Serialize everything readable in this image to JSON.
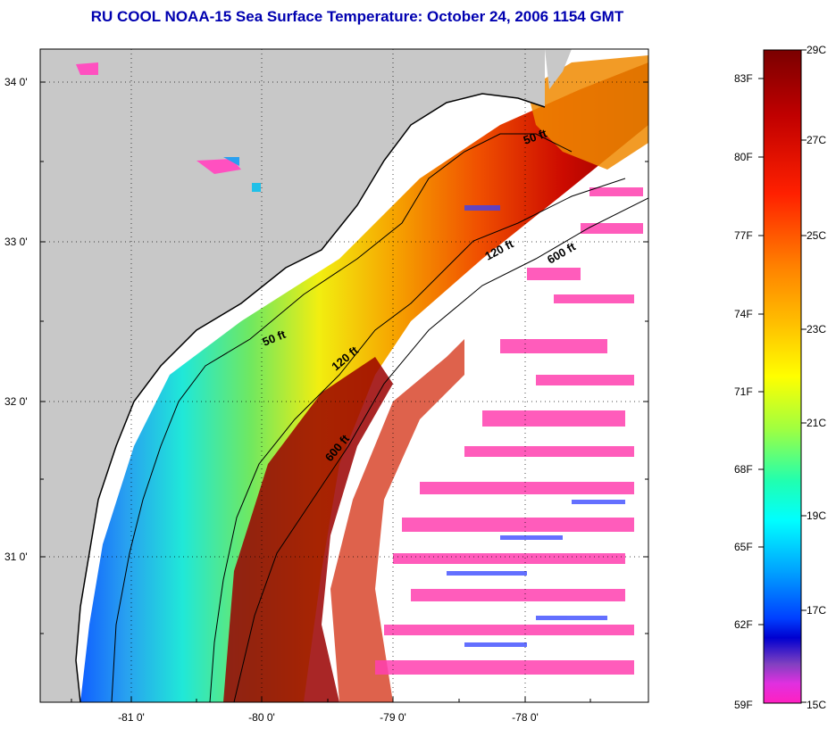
{
  "title": "RU COOL  NOAA-15  Sea Surface Temperature:  October 24, 2006 1154 GMT",
  "map": {
    "lat_labels": [
      "34 0'",
      "33 0'",
      "32 0'",
      "31 0'"
    ],
    "lon_labels": [
      "-81 0'",
      "-80 0'",
      "-79 0'",
      "-78 0'"
    ],
    "isobaths": {
      "label_50": "50 ft",
      "label_120": "120 ft",
      "label_600": "600 ft"
    },
    "colors": {
      "land": "#c8c8c8",
      "no_data": "#ffffff"
    }
  },
  "colorbar": {
    "f_labels": [
      "83F",
      "80F",
      "77F",
      "74F",
      "71F",
      "68F",
      "65F",
      "62F",
      "59F"
    ],
    "c_labels": [
      "29C",
      "27C",
      "25C",
      "23C",
      "21C",
      "19C",
      "17C",
      "15C"
    ]
  }
}
